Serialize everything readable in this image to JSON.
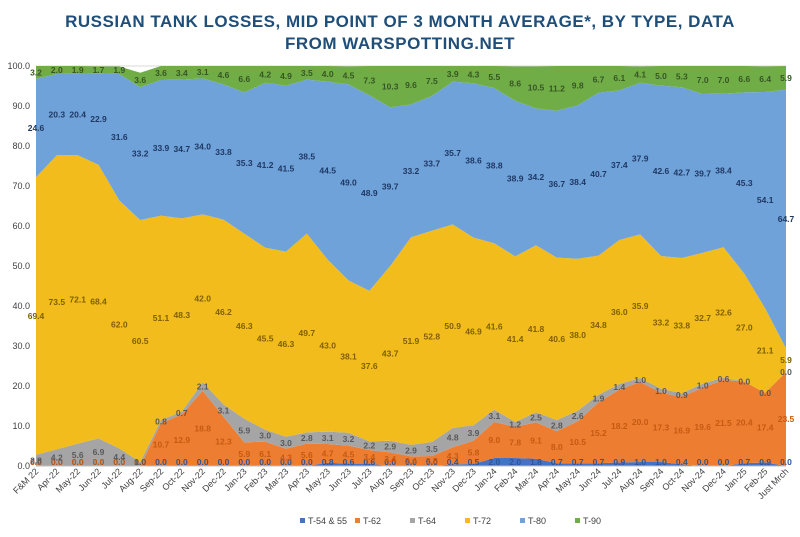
{
  "chart_data": {
    "type": "area",
    "stacked": true,
    "title_lines": [
      "RUSSIAN TANK LOSSES, MID POINT OF 3 MONTH AVERAGE*, BY TYPE, DATA",
      "FROM WARSPOTTING.NET"
    ],
    "ylim": [
      0,
      100
    ],
    "y_ticks": [
      "0.0",
      "10.0",
      "20.0",
      "30.0",
      "40.0",
      "50.0",
      "60.0",
      "70.0",
      "80.0",
      "90.0",
      "100.0"
    ],
    "grid": true,
    "legend_position": "bottom",
    "categories": [
      "F&M 22",
      "Apr-22",
      "May-22",
      "Jun-22",
      "Jul-22",
      "Aug-22",
      "Sep-22",
      "Oct-22",
      "Nov-22",
      "Dec-22",
      "Jan-23",
      "Feb-23",
      "Mar-23",
      "Apr-23",
      "May-23",
      "Jun-23",
      "Jul-23",
      "Aug-23",
      "Sep-23",
      "Oct-23",
      "Nov-23",
      "Dec-23",
      "Jan-24",
      "Feb-24",
      "Mar-24",
      "Apr-24",
      "May-24",
      "Jun-24",
      "Jul-24",
      "Aug-24",
      "Sep-24",
      "Oct-24",
      "Nov-24",
      "Dec-24",
      "Jan-25",
      "Feb-25",
      "Just Mrch"
    ],
    "series": [
      {
        "name": "T-54 & 55",
        "color": "#4472c4",
        "label_color": "#2f5597",
        "values": [
          0.0,
          0.0,
          0.0,
          0.0,
          0.0,
          0.0,
          0.0,
          0.0,
          0.0,
          0.0,
          0.0,
          0.0,
          0.0,
          0.0,
          0.8,
          0.6,
          0.6,
          0.0,
          0.0,
          0.0,
          0.4,
          0.5,
          2.0,
          2.0,
          1.8,
          0.7,
          0.7,
          0.7,
          0.9,
          1.0,
          1.0,
          0.4,
          0.0,
          0.0,
          0.7,
          0.9,
          0.0
        ]
      },
      {
        "name": "T-62",
        "color": "#ed7d31",
        "label_color": "#c55a11",
        "values": [
          0.0,
          0.0,
          0.0,
          0.0,
          0.0,
          0.0,
          10.7,
          12.9,
          18.8,
          12.3,
          5.9,
          6.1,
          4.3,
          5.6,
          4.7,
          4.5,
          3.4,
          3.4,
          2.4,
          2.5,
          4.3,
          5.8,
          9.0,
          7.8,
          9.1,
          8.0,
          10.5,
          15.2,
          18.2,
          20.0,
          17.3,
          16.9,
          19.6,
          21.5,
          20.4,
          17.4,
          23.5
        ]
      },
      {
        "name": "T-64",
        "color": "#a5a5a5",
        "label_color": "#595959",
        "values": [
          2.8,
          4.2,
          5.6,
          6.9,
          4.4,
          1.0,
          0.8,
          0.7,
          2.1,
          3.1,
          5.9,
          3.0,
          3.0,
          2.8,
          3.1,
          3.2,
          2.2,
          2.9,
          2.9,
          3.5,
          4.8,
          3.9,
          3.1,
          1.2,
          2.5,
          2.8,
          2.6,
          1.9,
          1.4,
          1.0,
          1.0,
          0.9,
          1.0,
          0.6,
          0.0,
          0.0,
          0.0
        ]
      },
      {
        "name": "T-72",
        "color": "#f2bc1c",
        "label_color": "#7f6000",
        "values": [
          69.4,
          73.5,
          72.1,
          68.4,
          62.0,
          60.5,
          51.1,
          48.3,
          42.0,
          46.2,
          46.3,
          45.5,
          46.3,
          49.7,
          43.0,
          38.1,
          37.6,
          43.7,
          51.9,
          52.8,
          50.9,
          46.9,
          41.6,
          41.4,
          41.8,
          40.6,
          38.0,
          34.8,
          36.0,
          35.9,
          33.2,
          33.8,
          32.7,
          32.6,
          27.0,
          21.1,
          5.9
        ]
      },
      {
        "name": "T-80",
        "color": "#6fa2d9",
        "label_color": "#1f3864",
        "values": [
          24.6,
          20.3,
          20.4,
          22.9,
          31.6,
          33.2,
          33.9,
          34.7,
          34.0,
          33.8,
          35.3,
          41.2,
          41.5,
          38.5,
          44.5,
          49.0,
          48.9,
          39.7,
          33.2,
          33.7,
          35.7,
          38.6,
          38.8,
          38.9,
          34.2,
          36.7,
          38.4,
          40.7,
          37.4,
          37.9,
          42.6,
          42.7,
          39.7,
          38.4,
          45.3,
          54.1,
          64.7
        ]
      },
      {
        "name": "T-90",
        "color": "#70ad47",
        "label_color": "#375623",
        "values": [
          3.2,
          2.0,
          1.9,
          1.7,
          1.9,
          3.6,
          3.6,
          3.4,
          3.1,
          4.6,
          6.6,
          4.2,
          4.9,
          3.5,
          4.0,
          4.5,
          7.3,
          10.3,
          9.6,
          7.5,
          3.9,
          4.3,
          5.5,
          8.6,
          10.5,
          11.2,
          9.8,
          6.7,
          6.1,
          4.1,
          5.0,
          5.3,
          7.0,
          7.0,
          6.6,
          6.4,
          5.9
        ]
      }
    ]
  }
}
